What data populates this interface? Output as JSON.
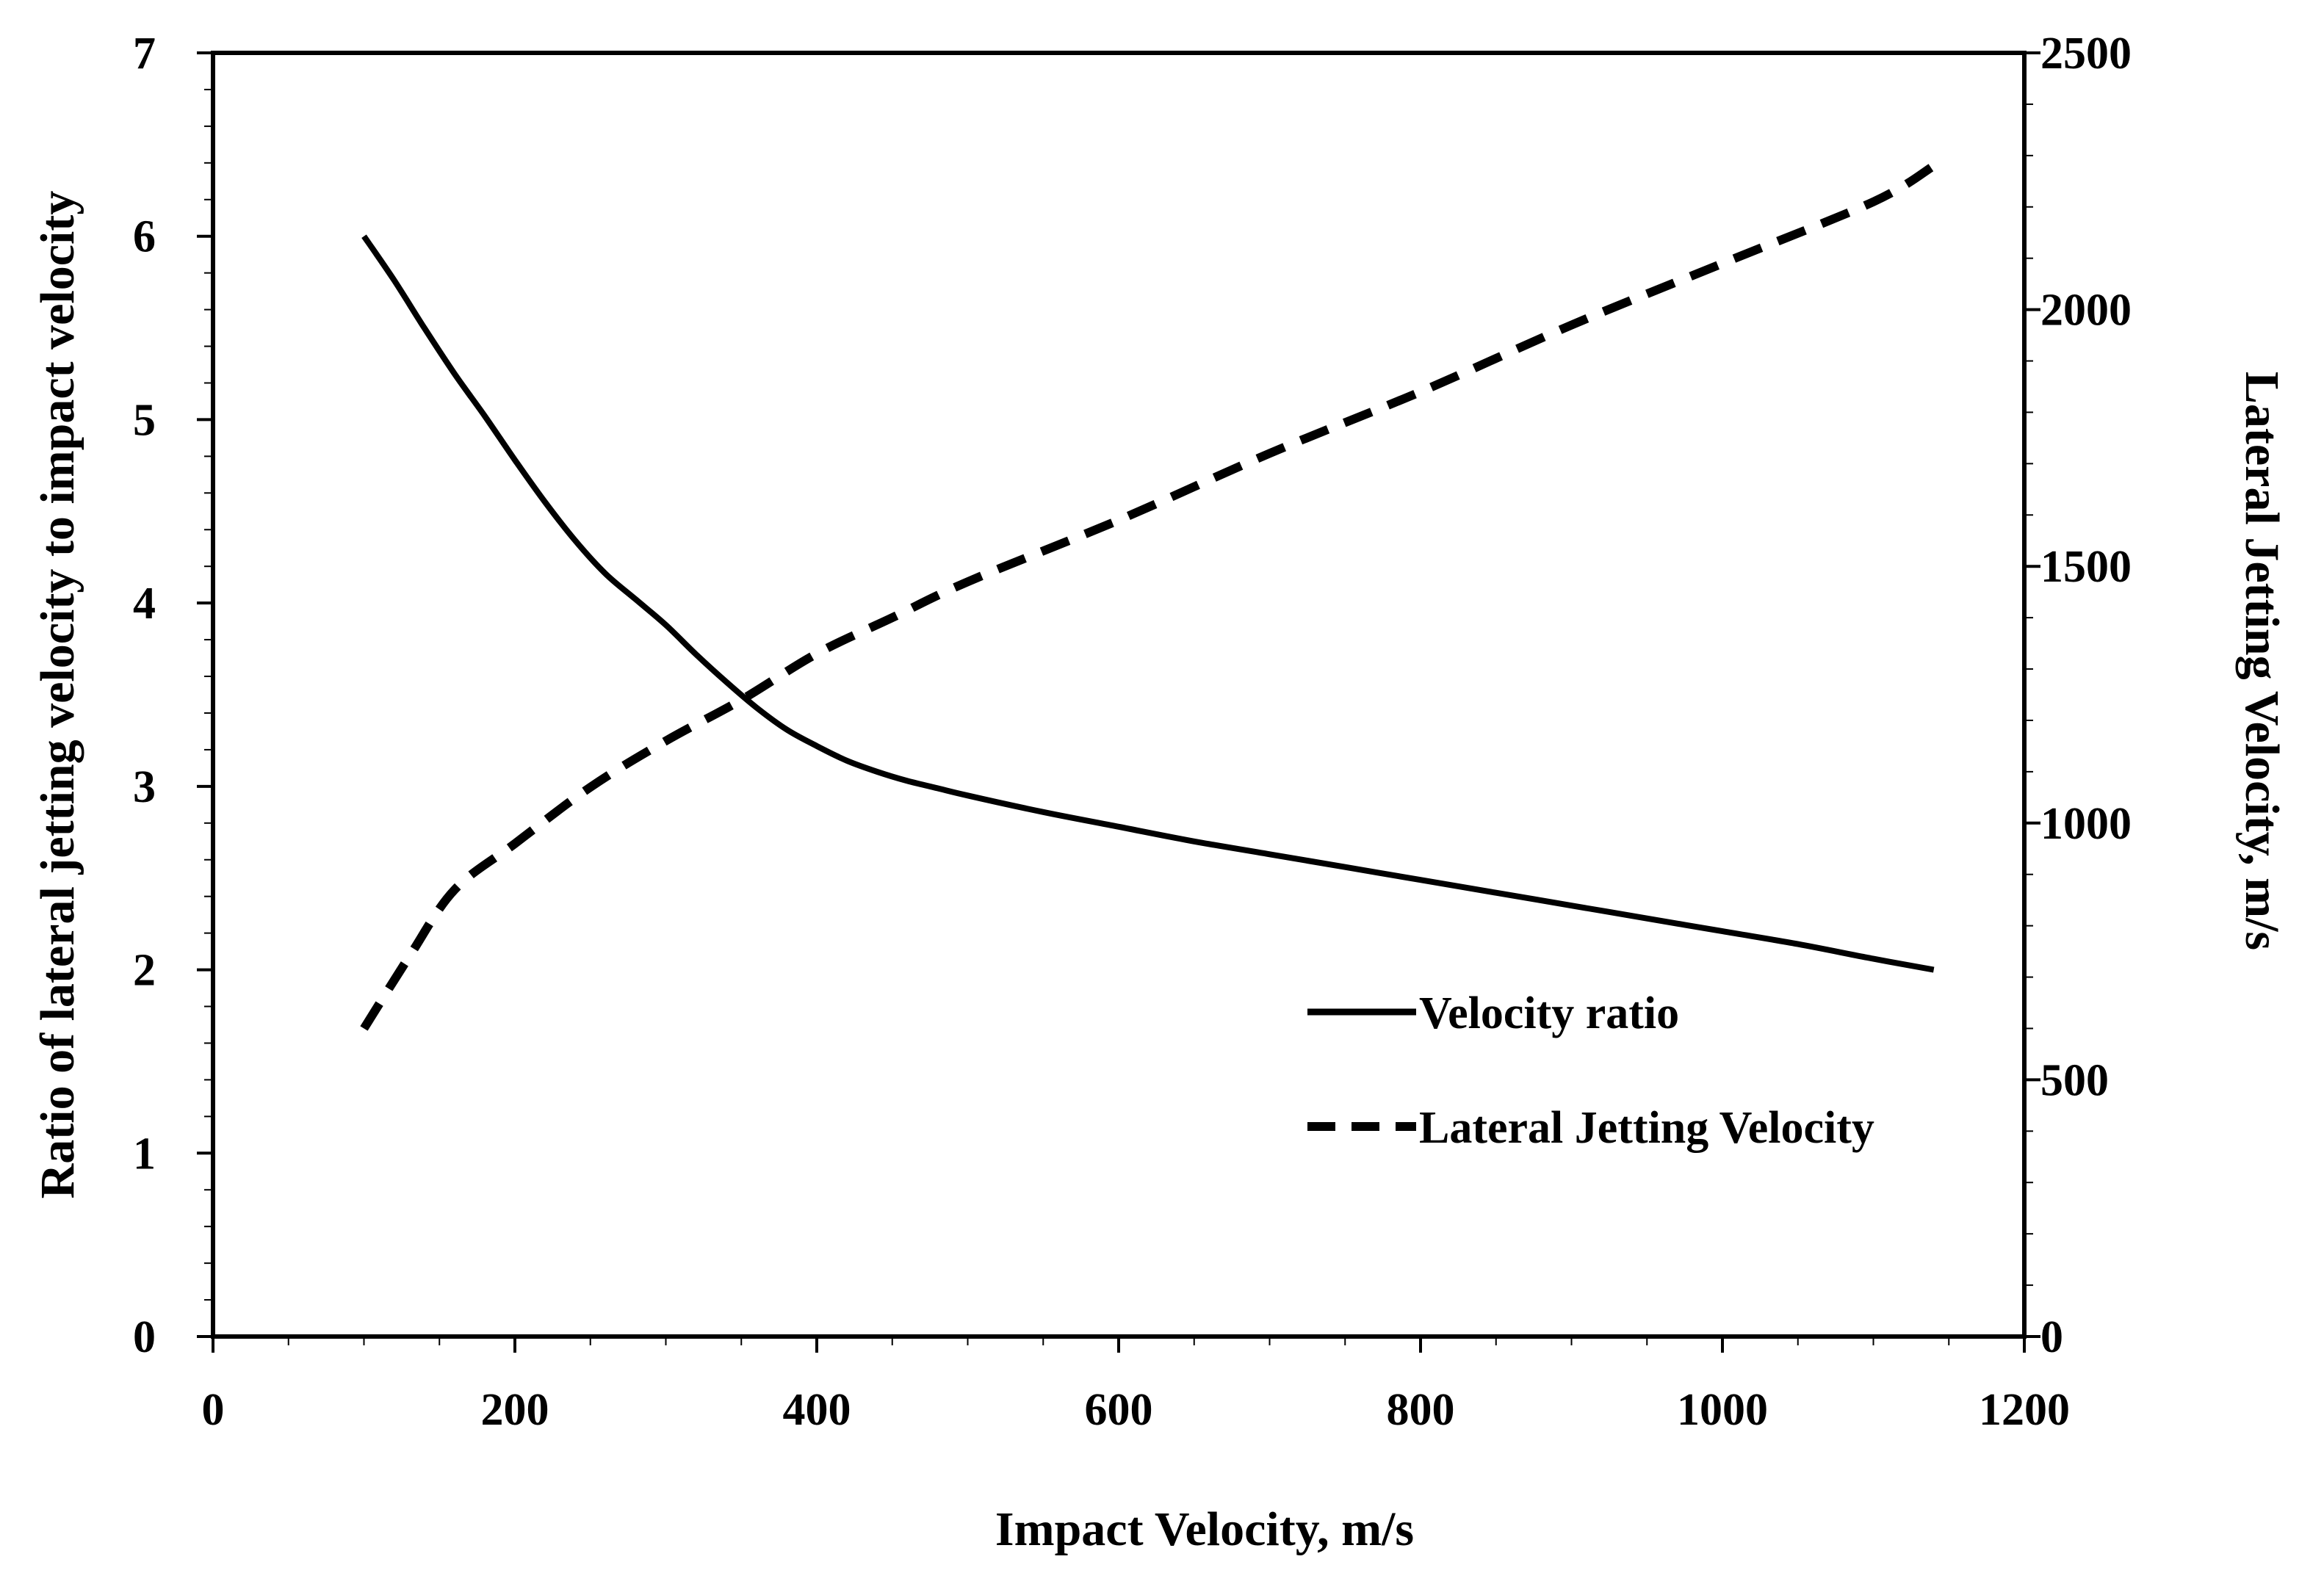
{
  "chart_data": {
    "type": "line",
    "title": "",
    "xlabel": "Impact Velocity, m/s",
    "ylabel": "Ratio of lateral jetting velocity to impact velocity",
    "y2label": "Lateral Jetting Velocity, m/s",
    "xlim": [
      0,
      1200
    ],
    "ylim": [
      0,
      7
    ],
    "y2lim": [
      0,
      2500
    ],
    "x_ticks": [
      0,
      200,
      400,
      600,
      800,
      1000,
      1200
    ],
    "y_ticks": [
      0,
      1,
      2,
      3,
      4,
      5,
      6,
      7
    ],
    "y2_ticks": [
      0,
      500,
      1000,
      1500,
      2000,
      2500
    ],
    "x_tick_labels": [
      "0",
      "200",
      "400",
      "600",
      "800",
      "1000",
      "1200"
    ],
    "y_tick_labels": [
      "0",
      "1",
      "2",
      "3",
      "4",
      "5",
      "6",
      "7"
    ],
    "y2_tick_labels": [
      "0",
      "500",
      "1000",
      "1500",
      "2000",
      "2500"
    ],
    "grid": false,
    "legend_position": "bottom-right",
    "series": [
      {
        "name": "Velocity ratio",
        "axis": "left",
        "style": "solid",
        "color": "#000000",
        "x": [
          100,
          120,
          140,
          160,
          180,
          200,
          220,
          240,
          260,
          280,
          300,
          320,
          340,
          360,
          380,
          400,
          420,
          440,
          460,
          480,
          500,
          550,
          600,
          650,
          700,
          750,
          800,
          850,
          900,
          950,
          1000,
          1050,
          1100,
          1140
        ],
        "values": [
          6.0,
          5.76,
          5.5,
          5.25,
          5.02,
          4.78,
          4.55,
          4.34,
          4.16,
          4.02,
          3.88,
          3.72,
          3.57,
          3.43,
          3.31,
          3.22,
          3.14,
          3.08,
          3.03,
          2.99,
          2.95,
          2.86,
          2.78,
          2.7,
          2.63,
          2.56,
          2.49,
          2.42,
          2.35,
          2.28,
          2.21,
          2.14,
          2.06,
          2.0
        ]
      },
      {
        "name": "Lateral Jetting Velocity",
        "axis": "right",
        "style": "dashed",
        "color": "#000000",
        "x": [
          100,
          130,
          160,
          200,
          250,
          300,
          350,
          400,
          450,
          500,
          600,
          700,
          800,
          900,
          1000,
          1100,
          1140
        ],
        "values": [
          600,
          740,
          870,
          960,
          1070,
          1160,
          1240,
          1330,
          1400,
          1470,
          1590,
          1720,
          1840,
          1970,
          2090,
          2210,
          2280
        ]
      }
    ]
  }
}
